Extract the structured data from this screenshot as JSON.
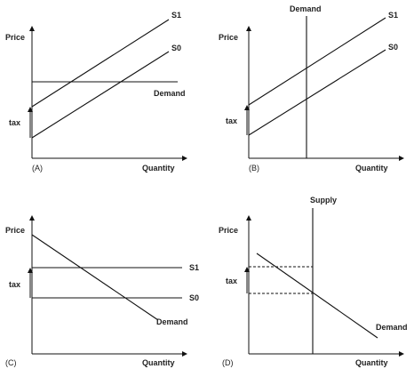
{
  "panels": {
    "a": {
      "id_label": "(A)",
      "y_axis": "Price",
      "x_axis": "Quantity",
      "tax": "tax",
      "s1": "S1",
      "s0": "S0",
      "demand": "Demand"
    },
    "b": {
      "id_label": "(B)",
      "y_axis": "Price",
      "x_axis": "Quantity",
      "tax": "tax",
      "s1": "S1",
      "s0": "S0",
      "demand": "Demand"
    },
    "c": {
      "id_label": "(C)",
      "y_axis": "Price",
      "x_axis": "Quantity",
      "tax": "tax",
      "s1": "S1",
      "s0": "S0",
      "demand": "Demand"
    },
    "d": {
      "id_label": "(D)",
      "y_axis": "Price",
      "x_axis": "Quantity",
      "tax": "tax",
      "supply": "Supply",
      "demand": "Demand"
    }
  }
}
